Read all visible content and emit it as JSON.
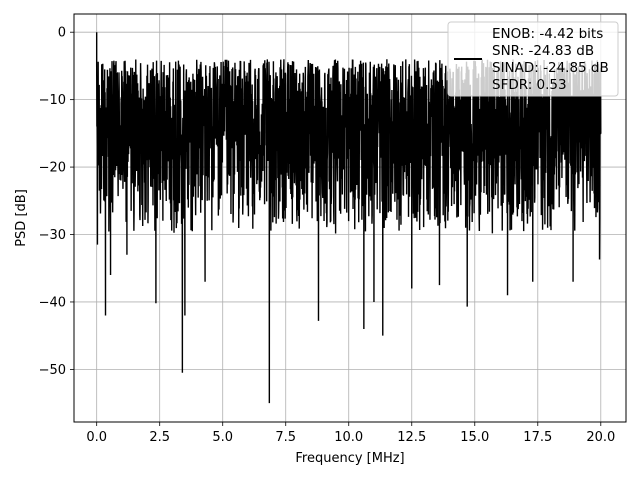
{
  "chart_data": {
    "type": "line",
    "xlabel": "Frequency [MHz]",
    "ylabel": "PSD [dB]",
    "xlim": [
      -0.9,
      21.0
    ],
    "ylim": [
      -57.8,
      2.7
    ],
    "xticks": [
      0.0,
      2.5,
      5.0,
      7.5,
      10.0,
      12.5,
      15.0,
      17.5,
      20.0
    ],
    "xtick_labels": [
      "0.0",
      "2.5",
      "5.0",
      "7.5",
      "10.0",
      "12.5",
      "15.0",
      "17.5",
      "20.0"
    ],
    "yticks": [
      0,
      -10,
      -20,
      -30,
      -40,
      -50
    ],
    "ytick_labels": [
      "0",
      "−10",
      "−20",
      "−30",
      "−40",
      "−50"
    ],
    "grid": true,
    "legend_position": "top-right",
    "series": [
      {
        "name": "ENOB: -4.42 bits\nSNR: -24.83 dB\nSINAD: -24.85 dB\nSFDR: 0.53",
        "legend_lines": [
          "ENOB: -4.42 bits",
          "SNR: -24.83 dB",
          "SINAD: -24.85 dB",
          "SFDR: 0.53"
        ],
        "color": "#000000",
        "x_range": [
          0.0,
          20.0
        ],
        "noise_floor_range": [
          -30,
          -4
        ],
        "peak_points": [
          [
            0.0,
            0.0
          ],
          [
            0.05,
            -16.0
          ]
        ],
        "dip_points": [
          [
            0.03,
            -31.5
          ],
          [
            0.35,
            -42.0
          ],
          [
            0.55,
            -36.0
          ],
          [
            1.2,
            -33.0
          ],
          [
            2.35,
            -40.2
          ],
          [
            3.4,
            -50.5
          ],
          [
            3.5,
            -42.0
          ],
          [
            4.3,
            -37.0
          ],
          [
            6.85,
            -55.0
          ],
          [
            8.8,
            -42.8
          ],
          [
            10.6,
            -44.0
          ],
          [
            11.35,
            -45.0
          ],
          [
            11.0,
            -40.0
          ],
          [
            12.5,
            -38.0
          ],
          [
            13.6,
            -37.5
          ],
          [
            14.7,
            -40.7
          ],
          [
            16.3,
            -39.0
          ],
          [
            17.3,
            -37.0
          ],
          [
            18.9,
            -37.0
          ],
          [
            19.95,
            -33.7
          ]
        ]
      }
    ]
  },
  "colors": {
    "line": "#000000",
    "grid": "#b0b0b0",
    "axes": "#000000",
    "legend_border": "#cccccc"
  }
}
